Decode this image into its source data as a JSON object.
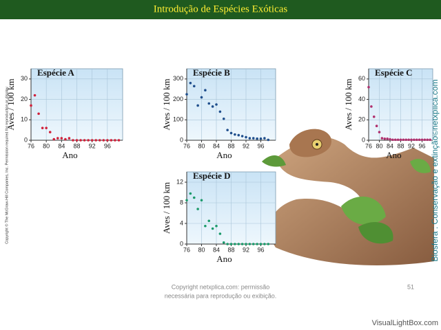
{
  "title": "Introdução de Espécies Exóticas",
  "side_copyright": "Copyright © The McGraw-Hill Companies, Inc. Permission required for reproduction or display.",
  "side_caption": "Biosfera : Conservação e extinção©netxplica.com",
  "footer": [
    "Copyright netxplica.com: permissão",
    "necessária para reprodução ou exibição."
  ],
  "page_number": "51",
  "watermark": "VisualLightBox.com",
  "chart_data": [
    {
      "type": "scatter",
      "title": "Espécie A",
      "x_label": "Ano",
      "y_label": "Aves / 100 km",
      "color": "#d0203a",
      "x": [
        76,
        77,
        78,
        79,
        80,
        81,
        82,
        83,
        84,
        85,
        86,
        87,
        88,
        89,
        90,
        91,
        92,
        93,
        94,
        95,
        96,
        97,
        98,
        99
      ],
      "values": [
        17,
        22,
        13,
        6,
        6,
        4,
        0.5,
        1,
        1,
        0.5,
        1,
        0,
        0,
        0,
        0,
        0,
        0,
        0,
        0,
        0,
        0,
        0,
        0,
        0
      ],
      "xlim": [
        76,
        100
      ],
      "ylim": [
        0,
        35
      ],
      "xticks": [
        76,
        80,
        84,
        88,
        92,
        96
      ],
      "yticks": [
        0,
        10,
        20,
        30
      ],
      "grid": true
    },
    {
      "type": "scatter",
      "title": "Espécie B",
      "x_label": "Ano",
      "y_label": "Aves / 100 km",
      "color": "#1f4e8c",
      "x": [
        76,
        77,
        78,
        79,
        80,
        81,
        82,
        83,
        84,
        85,
        86,
        87,
        88,
        89,
        90,
        91,
        92,
        93,
        94,
        95,
        96,
        97,
        98
      ],
      "values": [
        225,
        280,
        265,
        170,
        210,
        245,
        180,
        165,
        175,
        140,
        105,
        50,
        35,
        28,
        25,
        20,
        15,
        10,
        10,
        8,
        8,
        10,
        2
      ],
      "xlim": [
        76,
        100
      ],
      "ylim": [
        0,
        350
      ],
      "xticks": [
        76,
        80,
        84,
        88,
        92,
        96
      ],
      "yticks": [
        0,
        100,
        200,
        300
      ],
      "grid": true
    },
    {
      "type": "scatter",
      "title": "Espécie C",
      "x_label": "Ano",
      "y_label": "Aves / 100 km",
      "color": "#b0306e",
      "x": [
        76,
        77,
        78,
        79,
        80,
        81,
        82,
        83,
        84,
        85,
        86,
        87,
        88,
        89,
        90,
        91,
        92,
        93,
        94,
        95,
        96,
        97,
        98,
        99
      ],
      "values": [
        52,
        33,
        23,
        14,
        8,
        2,
        1.5,
        1.5,
        1,
        0.5,
        0.5,
        0.5,
        0.5,
        0.5,
        0.5,
        0.5,
        0.5,
        0.5,
        0.5,
        0.5,
        0.5,
        0.5,
        0.5,
        0.5
      ],
      "xlim": [
        76,
        100
      ],
      "ylim": [
        0,
        70
      ],
      "xticks": [
        76,
        80,
        84,
        88,
        92,
        96
      ],
      "yticks": [
        0,
        20,
        40,
        60
      ],
      "grid": true
    },
    {
      "type": "scatter",
      "title": "Espécie D",
      "x_label": "Ano",
      "y_label": "Aves / 100 km",
      "color": "#1a9a6a",
      "x": [
        76,
        77,
        78,
        79,
        80,
        81,
        82,
        83,
        84,
        85,
        86,
        87,
        88,
        89,
        90,
        91,
        92,
        93,
        94,
        95,
        96,
        97,
        98
      ],
      "values": [
        8.5,
        9.8,
        9,
        6.8,
        8.5,
        3.5,
        4.5,
        3,
        3.5,
        2,
        0.3,
        0,
        0,
        0,
        0,
        0,
        0,
        0,
        0,
        0,
        0,
        0,
        0
      ],
      "xlim": [
        76,
        100
      ],
      "ylim": [
        0,
        14
      ],
      "xticks": [
        76,
        80,
        84,
        88,
        92,
        96
      ],
      "yticks": [
        0,
        4,
        8,
        12
      ],
      "grid": true
    }
  ]
}
